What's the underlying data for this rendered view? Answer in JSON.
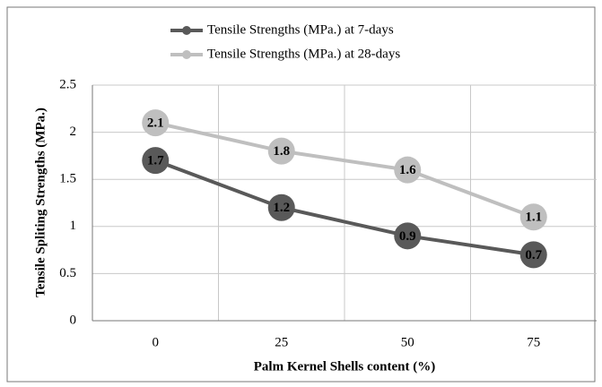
{
  "chart_data": {
    "type": "line",
    "x_label": "Palm Kernel Shells content (%)",
    "y_label": "Tensile Spliting Strengths (MPa.)",
    "categories": [
      "0",
      "25",
      "50",
      "75"
    ],
    "series": [
      {
        "name": "Tensile Strengths (MPa.) at 7-days",
        "color": "#595959",
        "values": [
          1.7,
          1.2,
          0.9,
          0.7
        ]
      },
      {
        "name": "Tensile Strengths (MPa.) at 28-days",
        "color": "#bfbfbf",
        "values": [
          2.1,
          1.8,
          1.6,
          1.1
        ]
      }
    ],
    "ylim": [
      0,
      2.5
    ],
    "yticks": [
      0,
      0.5,
      1,
      1.5,
      2,
      2.5
    ],
    "grid": true,
    "legend": "top"
  }
}
